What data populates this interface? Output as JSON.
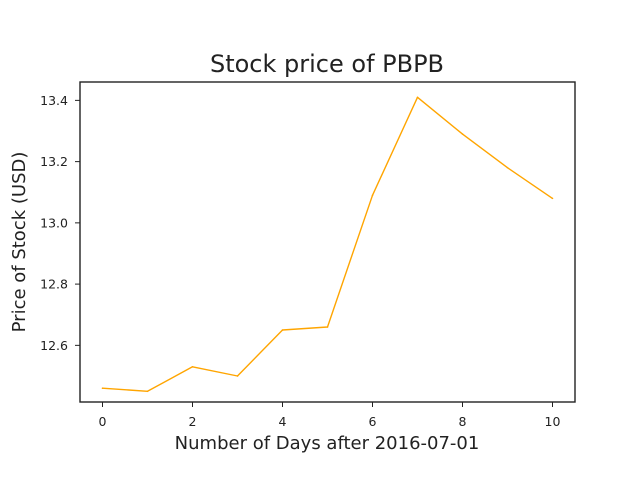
{
  "chart_data": {
    "type": "line",
    "title": "Stock price of PBPB",
    "xlabel": "Number of Days after 2016-07-01",
    "ylabel": "Price of Stock (USD)",
    "xlim": [
      -0.5,
      10.5
    ],
    "ylim": [
      12.415,
      13.46
    ],
    "x_ticks": [
      0,
      2,
      4,
      6,
      8,
      10
    ],
    "y_ticks": [
      12.6,
      12.8,
      13.0,
      13.2,
      13.4
    ],
    "x_tick_labels": [
      "0",
      "2",
      "4",
      "6",
      "8",
      "10"
    ],
    "y_tick_labels": [
      "12.6",
      "12.8",
      "13.0",
      "13.2",
      "13.4"
    ],
    "grid": false,
    "series": [
      {
        "color": "#ffa500",
        "x": [
          0,
          1,
          2,
          3,
          4,
          5,
          6,
          7,
          8,
          9,
          10
        ],
        "y": [
          12.46,
          12.45,
          12.53,
          12.5,
          12.65,
          12.66,
          13.09,
          13.41,
          13.29,
          13.18,
          13.08
        ]
      }
    ]
  }
}
